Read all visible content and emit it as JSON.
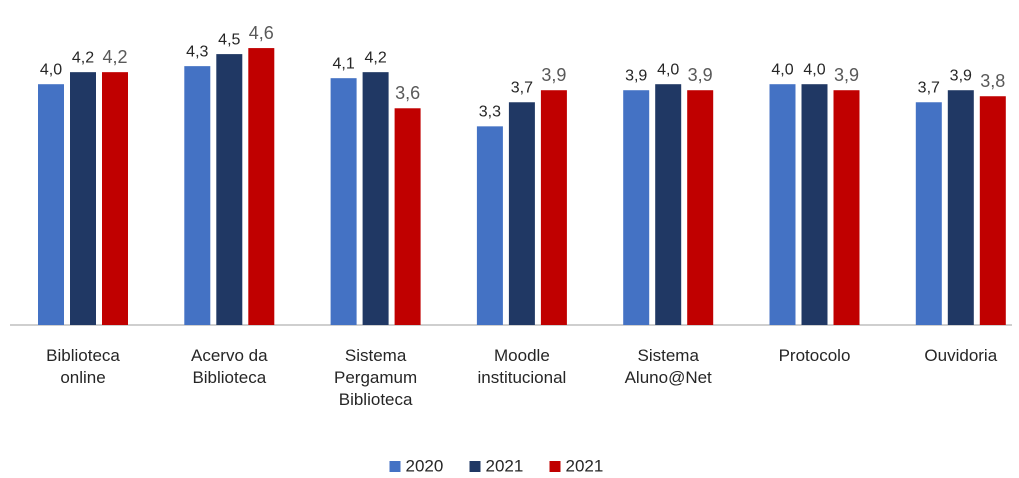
{
  "chart_data": {
    "type": "bar",
    "categories": [
      [
        "Biblioteca",
        "online"
      ],
      [
        "Acervo da",
        "Biblioteca"
      ],
      [
        "Sistema",
        "Pergamum",
        "Biblioteca"
      ],
      [
        "Moodle",
        "institucional"
      ],
      [
        "Sistema",
        "Aluno@Net"
      ],
      [
        "Protocolo"
      ],
      [
        "Ouvidoria"
      ]
    ],
    "series": [
      {
        "name": "2020",
        "color": "#4472c4",
        "values": [
          4.0,
          4.3,
          4.1,
          3.3,
          3.9,
          4.0,
          3.7
        ],
        "value_labels": [
          "4,0",
          "4,3",
          "4,1",
          "3,3",
          "3,9",
          "4,0",
          "3,7"
        ]
      },
      {
        "name": "2021",
        "color": "#203864",
        "values": [
          4.2,
          4.5,
          4.2,
          3.7,
          4.0,
          4.0,
          3.9
        ],
        "value_labels": [
          "4,2",
          "4,5",
          "4,2",
          "3,7",
          "4,0",
          "4,0",
          "3,9"
        ]
      },
      {
        "name": "2021",
        "color": "#c00000",
        "values": [
          4.2,
          4.6,
          3.6,
          3.9,
          3.9,
          3.9,
          3.8
        ],
        "value_labels": [
          "4,2",
          "4,6",
          "3,6",
          "3,9",
          "3,9",
          "3,9",
          "3,8"
        ]
      }
    ],
    "ylim": [
      0,
      5
    ],
    "legend": "bottom"
  }
}
